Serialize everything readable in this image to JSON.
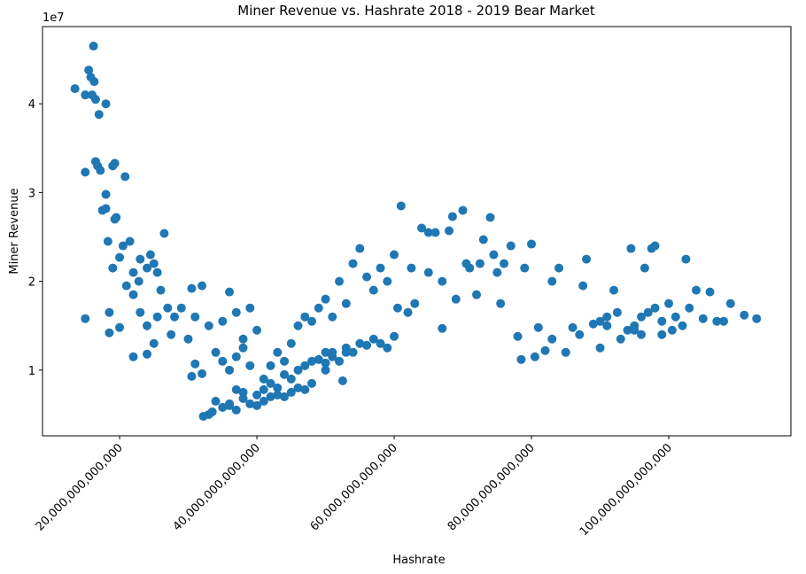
{
  "chart_data": {
    "type": "scatter",
    "title": "Miner Revenue vs. Hashrate 2018 - 2019 Bear Market",
    "x_label": "Hashrate",
    "y_label": "Miner Revenue",
    "y_offset_label": "1e7",
    "color": "#1f77b4",
    "xlim": [
      8770000000000.0,
      117800000000000.0
    ],
    "ylim": [
      2600000.0,
      48700000.0
    ],
    "xticks": [
      {
        "value": 20000000000000.0,
        "label": "20,000,000,000,000"
      },
      {
        "value": 40000000000000.0,
        "label": "40,000,000,000,000"
      },
      {
        "value": 60000000000000.0,
        "label": "60,000,000,000,000"
      },
      {
        "value": 80000000000000.0,
        "label": "80,000,000,000,000"
      },
      {
        "value": 100000000000000.0,
        "label": "100,000,000,000,000"
      }
    ],
    "yticks": [
      {
        "value": 10000000.0,
        "label": "1"
      },
      {
        "value": 20000000.0,
        "label": "2"
      },
      {
        "value": 30000000.0,
        "label": "3"
      },
      {
        "value": 40000000.0,
        "label": "4"
      }
    ],
    "x": [
      13500000000000.0,
      15000000000000.0,
      15500000000000.0,
      15800000000000.0,
      16000000000000.0,
      16200000000000.0,
      16300000000000.0,
      16500000000000.0,
      17000000000000.0,
      18000000000000.0,
      15000000000000.0,
      16500000000000.0,
      16800000000000.0,
      17200000000000.0,
      19000000000000.0,
      19300000000000.0,
      20800000000000.0,
      18000000000000.0,
      17500000000000.0,
      18000000000000.0,
      19500000000000.0,
      19300000000000.0,
      18300000000000.0,
      20500000000000.0,
      21500000000000.0,
      20000000000000.0,
      19000000000000.0,
      15000000000000.0,
      18500000000000.0,
      18500000000000.0,
      20000000000000.0,
      21000000000000.0,
      22000000000000.0,
      22000000000000.0,
      23000000000000.0,
      22800000000000.0,
      24000000000000.0,
      24500000000000.0,
      25000000000000.0,
      25500000000000.0,
      26500000000000.0,
      23000000000000.0,
      24000000000000.0,
      22000000000000.0,
      24000000000000.0,
      25000000000000.0,
      25500000000000.0,
      26000000000000.0,
      27000000000000.0,
      27500000000000.0,
      28000000000000.0,
      29000000000000.0,
      30000000000000.0,
      30500000000000.0,
      31000000000000.0,
      32000000000000.0,
      30500000000000.0,
      31000000000000.0,
      32000000000000.0,
      33000000000000.0,
      34000000000000.0,
      35000000000000.0,
      36000000000000.0,
      37000000000000.0,
      35000000000000.0,
      36000000000000.0,
      38000000000000.0,
      39000000000000.0,
      40000000000000.0,
      33000000000000.0,
      32200000000000.0,
      33500000000000.0,
      34000000000000.0,
      35000000000000.0,
      36000000000000.0,
      37000000000000.0,
      38000000000000.0,
      39000000000000.0,
      40000000000000.0,
      41000000000000.0,
      42000000000000.0,
      43000000000000.0,
      44000000000000.0,
      45000000000000.0,
      46000000000000.0,
      47000000000000.0,
      48000000000000.0,
      41000000000000.0,
      42000000000000.0,
      43000000000000.0,
      44000000000000.0,
      45000000000000.0,
      46000000000000.0,
      47000000000000.0,
      48000000000000.0,
      49000000000000.0,
      50000000000000.0,
      50000000000000.0,
      51000000000000.0,
      52000000000000.0,
      52500000000000.0,
      53000000000000.0,
      54000000000000.0,
      55000000000000.0,
      56000000000000.0,
      57000000000000.0,
      58000000000000.0,
      59000000000000.0,
      60000000000000.0,
      50000000000000.0,
      51000000000000.0,
      52000000000000.0,
      53000000000000.0,
      54000000000000.0,
      55000000000000.0,
      56000000000000.0,
      57000000000000.0,
      58000000000000.0,
      59000000000000.0,
      60000000000000.0,
      60500000000000.0,
      61000000000000.0,
      62000000000000.0,
      62500000000000.0,
      63000000000000.0,
      64000000000000.0,
      65000000000000.0,
      65000000000000.0,
      66000000000000.0,
      67000000000000.0,
      67000000000000.0,
      68000000000000.0,
      68500000000000.0,
      69000000000000.0,
      70000000000000.0,
      70500000000000.0,
      71000000000000.0,
      72000000000000.0,
      72500000000000.0,
      73000000000000.0,
      74000000000000.0,
      74500000000000.0,
      75000000000000.0,
      75500000000000.0,
      76000000000000.0,
      77000000000000.0,
      78000000000000.0,
      78500000000000.0,
      79000000000000.0,
      80000000000000.0,
      80500000000000.0,
      81000000000000.0,
      82000000000000.0,
      83000000000000.0,
      83000000000000.0,
      84000000000000.0,
      85000000000000.0,
      86000000000000.0,
      87000000000000.0,
      87500000000000.0,
      88000000000000.0,
      89000000000000.0,
      90000000000000.0,
      91000000000000.0,
      92000000000000.0,
      92500000000000.0,
      93000000000000.0,
      94000000000000.0,
      94500000000000.0,
      95000000000000.0,
      96000000000000.0,
      96500000000000.0,
      97000000000000.0,
      97500000000000.0,
      98000000000000.0,
      98000000000000.0,
      99000000000000.0,
      100000000000000.0,
      100500000000000.0,
      101000000000000.0,
      102000000000000.0,
      102500000000000.0,
      103000000000000.0,
      104000000000000.0,
      105000000000000.0,
      106000000000000.0,
      107000000000000.0,
      108000000000000.0,
      109000000000000.0,
      111000000000000.0,
      112800000000000.0,
      90000000000000.0,
      91000000000000.0,
      95000000000000.0,
      96000000000000.0,
      99000000000000.0,
      44000000000000.0,
      46000000000000.0,
      47000000000000.0,
      48000000000000.0,
      49000000000000.0,
      50000000000000.0,
      51000000000000.0,
      53000000000000.0,
      37000000000000.0,
      38000000000000.0,
      39000000000000.0,
      42000000000000.0,
      43000000000000.0,
      45000000000000.0,
      40000000000000.0,
      41000000000000.0,
      37000000000000.0,
      36000000000000.0,
      38000000000000.0
    ],
    "values": [
      41700000.0,
      41000000.0,
      43800000.0,
      43000000.0,
      41000000.0,
      46500000.0,
      42500000.0,
      40500000.0,
      38800000.0,
      40000000.0,
      32300000.0,
      33500000.0,
      33000000.0,
      32500000.0,
      33000000.0,
      33300000.0,
      31800000.0,
      29800000.0,
      28000000.0,
      28200000.0,
      27200000.0,
      27000000.0,
      24500000.0,
      24000000.0,
      24500000.0,
      22700000.0,
      21500000.0,
      15800000.0,
      16500000.0,
      14200000.0,
      14800000.0,
      19500000.0,
      21000000.0,
      18500000.0,
      22500000.0,
      20000000.0,
      21500000.0,
      23000000.0,
      22000000.0,
      21000000.0,
      25400000.0,
      16500000.0,
      15000000.0,
      11500000.0,
      11800000.0,
      13000000.0,
      16000000.0,
      19000000.0,
      17000000.0,
      14000000.0,
      16000000.0,
      17000000.0,
      13500000.0,
      19200000.0,
      16000000.0,
      19500000.0,
      9300000.0,
      10700000.0,
      9600000.0,
      15000000.0,
      12000000.0,
      15500000.0,
      18800000.0,
      16500000.0,
      11000000.0,
      10000000.0,
      13500000.0,
      17000000.0,
      14500000.0,
      5000000.0,
      4800000.0,
      5300000.0,
      6500000.0,
      5800000.0,
      6200000.0,
      5500000.0,
      6800000.0,
      6200000.0,
      6000000.0,
      6500000.0,
      7000000.0,
      7200000.0,
      7000000.0,
      7500000.0,
      8000000.0,
      7800000.0,
      8500000.0,
      9000000.0,
      10500000.0,
      12000000.0,
      11000000.0,
      13000000.0,
      15000000.0,
      16000000.0,
      15500000.0,
      17000000.0,
      12000000.0,
      10000000.0,
      11500000.0,
      11000000.0,
      8800000.0,
      12500000.0,
      12000000.0,
      13000000.0,
      12800000.0,
      13500000.0,
      13000000.0,
      12500000.0,
      13800000.0,
      18000000.0,
      16000000.0,
      20000000.0,
      17500000.0,
      22000000.0,
      23700000.0,
      20500000.0,
      19000000.0,
      21500000.0,
      20000000.0,
      23000000.0,
      17000000.0,
      28500000.0,
      16500000.0,
      21500000.0,
      17500000.0,
      26000000.0,
      25500000.0,
      21000000.0,
      25500000.0,
      20000000.0,
      14700000.0,
      25700000.0,
      27300000.0,
      18000000.0,
      28000000.0,
      22000000.0,
      21500000.0,
      18500000.0,
      22000000.0,
      24700000.0,
      27200000.0,
      23000000.0,
      21000000.0,
      17500000.0,
      22000000.0,
      24000000.0,
      13800000.0,
      11200000.0,
      21500000.0,
      24200000.0,
      11500000.0,
      14800000.0,
      12200000.0,
      20000000.0,
      13500000.0,
      21500000.0,
      12000000.0,
      14800000.0,
      14000000.0,
      19500000.0,
      22500000.0,
      15200000.0,
      12500000.0,
      16000000.0,
      19000000.0,
      16500000.0,
      13500000.0,
      14500000.0,
      23700000.0,
      15000000.0,
      14000000.0,
      21500000.0,
      16500000.0,
      23700000.0,
      24000000.0,
      17000000.0,
      15500000.0,
      17500000.0,
      14500000.0,
      16000000.0,
      15000000.0,
      22500000.0,
      17000000.0,
      19000000.0,
      15800000.0,
      18800000.0,
      15500000.0,
      15500000.0,
      17500000.0,
      16200000.0,
      15800000.0,
      15500000.0,
      15000000.0,
      14500000.0,
      16000000.0,
      14000000.0,
      9500000.0,
      10000000.0,
      10500000.0,
      11000000.0,
      11200000.0,
      10800000.0,
      12000000.0,
      12000000.0,
      11500000.0,
      12500000.0,
      10500000.0,
      8500000.0,
      8000000.0,
      9000000.0,
      7200000.0,
      7800000.0,
      7800000.0,
      6000000.0,
      7500000.0
    ]
  }
}
